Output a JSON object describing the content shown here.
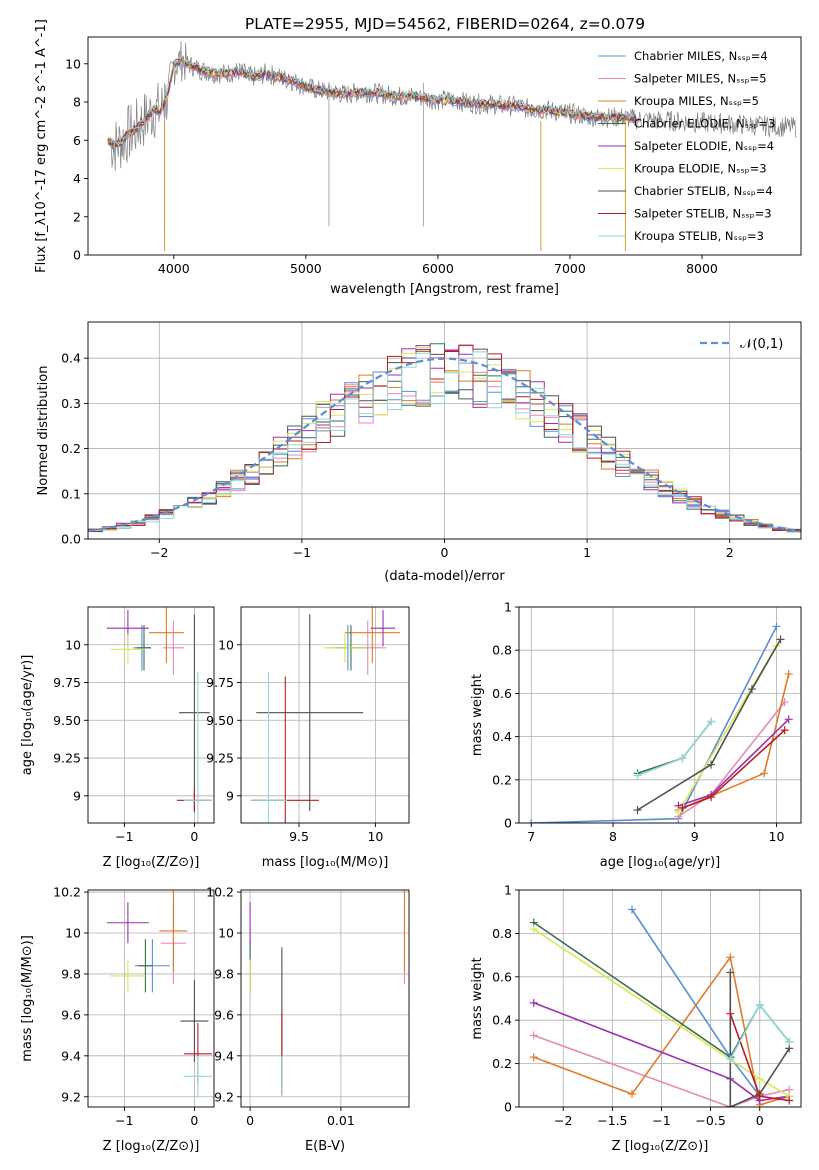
{
  "title": "PLATE=2955, MJD=54562, FIBERID=0264, z=0.079",
  "legend_top": [
    "Chabrier MILES, N_SSP=4",
    "Salpeter MILES, N_SSP=5",
    "Kroupa MILES, N_SSP=5",
    "Chabrier ELODIE, N_SSP=3",
    "Salpeter ELODIE, N_SSP=4",
    "Kroupa ELODIE, N_SSP=3",
    "Chabrier STELIB, N_SSP=4",
    "Salpeter STELIB, N_SSP=3",
    "Kroupa STELIB, N_SSP=3"
  ],
  "legend_hist": "𝒩(0,1)",
  "colors": [
    "#5b8ed6",
    "#e888b8",
    "#e07b2a",
    "#3a6e4e",
    "#9b30b0",
    "#d8e85a",
    "#505050",
    "#b81e24",
    "#8fd8da"
  ],
  "chart_data": [
    {
      "id": "spectrum",
      "type": "line",
      "xlabel": "wavelength [Angstrom, rest frame]",
      "ylabel": "Flux [f_λ10^-17 erg cm^-2 s^-1 A^-1]",
      "xlim": [
        3350,
        8750
      ],
      "ylim": [
        0,
        11.4
      ],
      "xticks": [
        4000,
        5000,
        6000,
        7000,
        8000
      ],
      "yticks": [
        0,
        2,
        4,
        6,
        8,
        10
      ],
      "grid": false,
      "legend": "top-right",
      "model": {
        "x": [
          3500,
          3550,
          3600,
          3650,
          3700,
          3750,
          3800,
          3850,
          3900,
          3950,
          4000,
          4050,
          4100,
          4200,
          4300,
          4400,
          4500,
          4600,
          4700,
          4800,
          4900,
          5000,
          5100,
          5200,
          5300,
          5400,
          5500,
          5600,
          5700,
          5800,
          5900,
          6000,
          6100,
          6200,
          6300,
          6400,
          6500,
          6600,
          6700,
          6800,
          6900,
          7000,
          7100,
          7200,
          7300,
          7400,
          7500
        ],
        "y": [
          6.0,
          5.7,
          5.9,
          6.3,
          6.5,
          6.9,
          7.2,
          7.6,
          7.5,
          8.3,
          9.9,
          10.2,
          10.0,
          9.7,
          9.5,
          9.5,
          9.6,
          9.3,
          9.5,
          9.3,
          9.1,
          8.8,
          8.6,
          8.5,
          8.4,
          8.5,
          8.5,
          8.4,
          8.3,
          8.3,
          8.2,
          8.1,
          8.1,
          8.0,
          7.9,
          7.9,
          7.8,
          7.8,
          7.6,
          7.6,
          7.5,
          7.4,
          7.3,
          7.2,
          7.2,
          7.2,
          7.1
        ]
      }
    },
    {
      "id": "residuals",
      "type": "bar",
      "xlabel": "(data-model)/error",
      "ylabel": "Normed distribution",
      "xlim": [
        -2.5,
        2.5
      ],
      "ylim": [
        0,
        0.48
      ],
      "xticks": [
        -2,
        -1,
        0,
        1,
        2
      ],
      "yticks": [
        0.0,
        0.1,
        0.2,
        0.3,
        0.4
      ],
      "grid": true,
      "legend": "top-right",
      "bin_width": 0.1
    },
    {
      "id": "age_vs_Z",
      "type": "scatter",
      "xlabel": "Z [log10(Z/Z⊙)]",
      "ylabel": "age [log10(age/yr)]",
      "xlim": [
        -1.52,
        0.28
      ],
      "ylim": [
        8.82,
        10.25
      ],
      "xticks": [
        -1,
        0
      ],
      "yticks": [
        9.0,
        9.25,
        9.5,
        9.75,
        10.0
      ],
      "grid": true,
      "points": [
        {
          "x": -0.75,
          "y": 9.98,
          "xerr": 0.12,
          "yerr": 0.15,
          "c": 0
        },
        {
          "x": -0.3,
          "y": 9.98,
          "xerr": 0.15,
          "yerr": 0.18,
          "c": 1
        },
        {
          "x": -0.4,
          "y": 10.08,
          "xerr": 0.25,
          "yerr": 0.2,
          "c": 2
        },
        {
          "x": -0.72,
          "y": 9.98,
          "xerr": 0.1,
          "yerr": 0.15,
          "c": 3
        },
        {
          "x": -0.95,
          "y": 10.11,
          "xerr": 0.3,
          "yerr": 0.12,
          "c": 4
        },
        {
          "x": -0.95,
          "y": 9.97,
          "xerr": 0.25,
          "yerr": 0.1,
          "c": 5
        },
        {
          "x": 0.0,
          "y": 9.55,
          "xerr": 0.22,
          "yerr": 0.65,
          "c": 6
        },
        {
          "x": 0.0,
          "y": 8.97,
          "xerr": 0.25,
          "yerr": 0.08,
          "c": 7
        },
        {
          "x": 0.05,
          "y": 8.97,
          "xerr": 0.2,
          "yerr": 0.85,
          "c": 8
        }
      ]
    },
    {
      "id": "age_vs_mass",
      "type": "scatter",
      "xlabel": "mass [log10(M/M⊙)]",
      "ylabel": "",
      "xlim": [
        9.12,
        10.22
      ],
      "ylim": [
        8.82,
        10.25
      ],
      "xticks": [
        9.5,
        10.0
      ],
      "yticks": [
        9.0,
        9.25,
        9.5,
        9.75,
        10.0
      ],
      "grid": true,
      "points": [
        {
          "x": 9.82,
          "y": 9.98,
          "xerr": 0.12,
          "yerr": 0.15,
          "c": 0
        },
        {
          "x": 9.95,
          "y": 9.98,
          "xerr": 0.12,
          "yerr": 0.18,
          "c": 1
        },
        {
          "x": 9.98,
          "y": 10.08,
          "xerr": 0.18,
          "yerr": 0.2,
          "c": 2
        },
        {
          "x": 9.84,
          "y": 9.98,
          "xerr": 0.1,
          "yerr": 0.15,
          "c": 3
        },
        {
          "x": 10.05,
          "y": 10.11,
          "xerr": 0.08,
          "yerr": 0.12,
          "c": 4
        },
        {
          "x": 9.8,
          "y": 9.98,
          "xerr": 0.14,
          "yerr": 0.1,
          "c": 5
        },
        {
          "x": 9.57,
          "y": 9.55,
          "xerr": 0.35,
          "yerr": 0.65,
          "c": 6
        },
        {
          "x": 9.41,
          "y": 8.97,
          "xerr": 0.22,
          "yerr": 0.82,
          "c": 7
        },
        {
          "x": 9.3,
          "y": 8.97,
          "xerr": 0.12,
          "yerr": 0.85,
          "c": 8
        }
      ]
    },
    {
      "id": "mw_vs_age",
      "type": "line",
      "xlabel": "age [log10(age/yr)]",
      "ylabel": "mass weight",
      "xlim": [
        6.85,
        10.3
      ],
      "ylim": [
        0,
        1.0
      ],
      "xticks": [
        7,
        8,
        9,
        10
      ],
      "yticks": [
        0.0,
        0.2,
        0.4,
        0.6,
        0.8,
        1.0
      ],
      "grid": true,
      "series": [
        {
          "c": 0,
          "x": [
            7.0,
            8.8,
            10.0
          ],
          "y": [
            0.0,
            0.02,
            0.91
          ]
        },
        {
          "c": 1,
          "x": [
            8.8,
            9.2,
            10.1
          ],
          "y": [
            0.03,
            0.13,
            0.56
          ]
        },
        {
          "c": 2,
          "x": [
            8.8,
            9.85,
            10.15
          ],
          "y": [
            0.06,
            0.23,
            0.69
          ]
        },
        {
          "c": 3,
          "x": [
            8.3,
            8.85,
            9.2
          ],
          "y": [
            0.23,
            0.3,
            0.47
          ]
        },
        {
          "c": 4,
          "x": [
            8.8,
            9.2,
            10.15
          ],
          "y": [
            0.08,
            0.13,
            0.48
          ]
        },
        {
          "c": 5,
          "x": [
            8.8,
            10.0
          ],
          "y": [
            0.05,
            0.82
          ]
        },
        {
          "c": 6,
          "x": [
            8.3,
            9.2,
            9.7,
            10.05
          ],
          "y": [
            0.06,
            0.27,
            0.62,
            0.85
          ]
        },
        {
          "c": 7,
          "x": [
            8.85,
            9.2,
            10.1
          ],
          "y": [
            0.07,
            0.12,
            0.43
          ]
        },
        {
          "c": 8,
          "x": [
            8.3,
            8.85,
            9.2
          ],
          "y": [
            0.22,
            0.3,
            0.47
          ]
        }
      ]
    },
    {
      "id": "mass_vs_Z",
      "type": "scatter",
      "xlabel": "Z [log10(Z/Z⊙)]",
      "ylabel": "mass [log10(M/M⊙)]",
      "xlim": [
        -1.52,
        0.28
      ],
      "ylim": [
        9.15,
        10.21
      ],
      "xticks": [
        -1,
        0
      ],
      "yticks": [
        9.2,
        9.4,
        9.6,
        9.8,
        10.0,
        10.2
      ],
      "grid": true,
      "points": [
        {
          "x": -0.6,
          "y": 9.84,
          "xerr": 0.25,
          "yerr": 0.13,
          "c": 0
        },
        {
          "x": -0.3,
          "y": 9.95,
          "xerr": 0.18,
          "yerr": 0.2,
          "c": 1
        },
        {
          "x": -0.3,
          "y": 10.01,
          "xerr": 0.2,
          "yerr": 0.2,
          "c": 2
        },
        {
          "x": -0.7,
          "y": 9.84,
          "xerr": 0.1,
          "yerr": 0.13,
          "c": 3
        },
        {
          "x": -0.95,
          "y": 10.05,
          "xerr": 0.3,
          "yerr": 0.1,
          "c": 4
        },
        {
          "x": -0.95,
          "y": 9.79,
          "xerr": 0.25,
          "yerr": 0.08,
          "c": 5
        },
        {
          "x": 0.0,
          "y": 9.57,
          "xerr": 0.2,
          "yerr": 0.2,
          "c": 6
        },
        {
          "x": 0.05,
          "y": 9.41,
          "xerr": 0.2,
          "yerr": 0.15,
          "c": 7
        },
        {
          "x": 0.05,
          "y": 9.3,
          "xerr": 0.2,
          "yerr": 0.1,
          "c": 8
        }
      ]
    },
    {
      "id": "mass_vs_EBV",
      "type": "scatter",
      "xlabel": "E(B-V)",
      "ylabel": "",
      "xlim": [
        -0.001,
        0.0175
      ],
      "ylim": [
        9.15,
        10.21
      ],
      "xticks": [
        0.0,
        0.01
      ],
      "yticks": [
        9.2,
        9.4,
        9.6,
        9.8,
        10.0,
        10.2
      ],
      "grid": true,
      "points": [
        {
          "x": 0.0,
          "y": 9.84,
          "xerr": 0,
          "yerr": 0.13,
          "c": 0
        },
        {
          "x": 0.017,
          "y": 9.95,
          "xerr": 0,
          "yerr": 0.2,
          "c": 1
        },
        {
          "x": 0.017,
          "y": 10.01,
          "xerr": 0,
          "yerr": 0.2,
          "c": 2
        },
        {
          "x": 0.0,
          "y": 9.84,
          "xerr": 0,
          "yerr": 0.13,
          "c": 3
        },
        {
          "x": 0.0,
          "y": 10.05,
          "xerr": 0,
          "yerr": 0.1,
          "c": 4
        },
        {
          "x": 0.0,
          "y": 9.79,
          "xerr": 0,
          "yerr": 0.08,
          "c": 5
        },
        {
          "x": 0.0035,
          "y": 9.57,
          "xerr": 0,
          "yerr": 0.36,
          "c": 6
        },
        {
          "x": 0.0035,
          "y": 9.41,
          "xerr": 0,
          "yerr": 0.2,
          "c": 7
        },
        {
          "x": 0.0035,
          "y": 9.3,
          "xerr": 0,
          "yerr": 0.1,
          "c": 8
        }
      ]
    },
    {
      "id": "mw_vs_Z",
      "type": "line",
      "xlabel": "Z [log10(Z/Z⊙)]",
      "ylabel": "mass weight",
      "xlim": [
        -2.45,
        0.42
      ],
      "ylim": [
        0,
        1.0
      ],
      "xticks": [
        -2.0,
        -1.5,
        -1.0,
        -0.5,
        0.0
      ],
      "yticks": [
        0.0,
        0.2,
        0.4,
        0.6,
        0.8,
        1.0
      ],
      "grid": true,
      "series": [
        {
          "c": 0,
          "x": [
            -1.3,
            -0.3,
            0.0
          ],
          "y": [
            0.91,
            0.23,
            0.05
          ]
        },
        {
          "c": 1,
          "x": [
            -2.3,
            -0.3,
            0.0,
            0.3
          ],
          "y": [
            0.33,
            0.0,
            0.05,
            0.08
          ]
        },
        {
          "c": 2,
          "x": [
            -2.3,
            -1.3,
            -0.3,
            0.0,
            0.3
          ],
          "y": [
            0.23,
            0.06,
            0.69,
            0.01,
            0.05
          ]
        },
        {
          "c": 3,
          "x": [
            -2.3,
            -0.3,
            0.0,
            0.3
          ],
          "y": [
            0.85,
            0.23,
            0.47,
            0.3
          ]
        },
        {
          "c": 4,
          "x": [
            -2.3,
            -0.3,
            0.0,
            0.3
          ],
          "y": [
            0.48,
            0.13,
            0.03,
            0.05
          ]
        },
        {
          "c": 5,
          "x": [
            -2.3,
            0.0,
            0.3
          ],
          "y": [
            0.82,
            0.13,
            0.05
          ]
        },
        {
          "c": 6,
          "x": [
            -0.3,
            -0.3,
            0.0,
            0.3
          ],
          "y": [
            0.62,
            0.0,
            0.06,
            0.27
          ]
        },
        {
          "c": 7,
          "x": [
            -0.3,
            0.0,
            0.3
          ],
          "y": [
            0.43,
            0.05,
            0.03
          ]
        },
        {
          "c": 8,
          "x": [
            -0.3,
            0.0,
            0.3
          ],
          "y": [
            0.22,
            0.47,
            0.3
          ]
        }
      ]
    }
  ]
}
